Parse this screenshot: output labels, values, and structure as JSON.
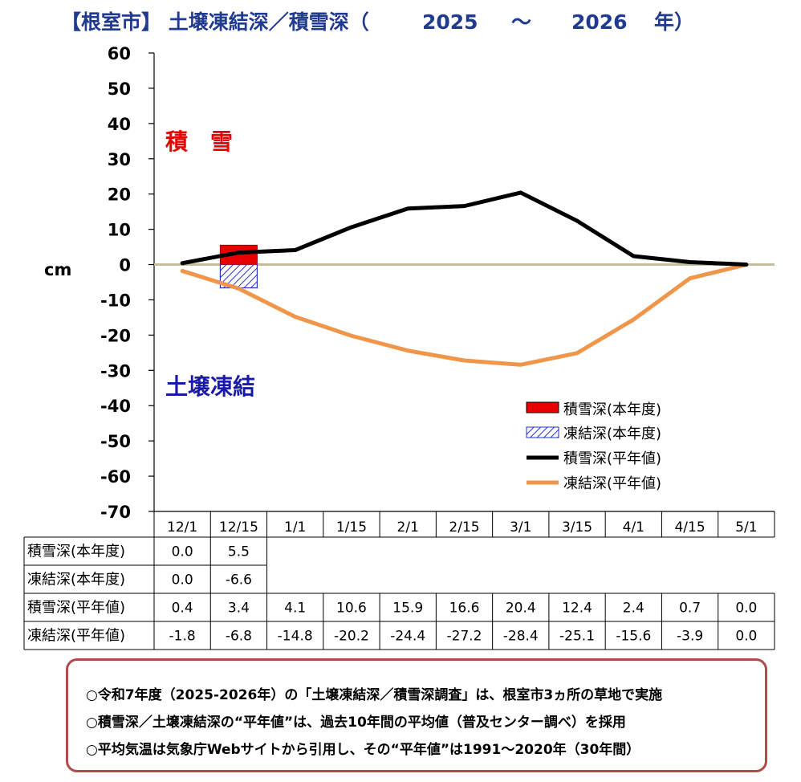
{
  "chart_data": {
    "type": "bar+line",
    "title": "【根室市】 土壌凍結深／積雪深（　2025　～　2026　年）",
    "title_parts": {
      "prefix": "【根室市】 土壌凍結深／積雪深（",
      "year_start": "2025",
      "tilde": "～",
      "year_end": "2026",
      "suffix": "年）"
    },
    "ylabel": "cm",
    "ylim": [
      -70,
      60
    ],
    "yticks": [
      "60",
      "50",
      "40",
      "30",
      "20",
      "10",
      "0",
      "-10",
      "-20",
      "-30",
      "-40",
      "-50",
      "-60",
      "-70"
    ],
    "ytick_values": [
      60,
      50,
      40,
      30,
      20,
      10,
      0,
      -10,
      -20,
      -30,
      -40,
      -50,
      -60,
      -70
    ],
    "categories": [
      "12/1",
      "12/15",
      "1/1",
      "1/15",
      "2/1",
      "2/15",
      "3/1",
      "3/15",
      "4/1",
      "4/15",
      "5/1"
    ],
    "annotations": {
      "snow": "積　雪",
      "frost": "土壌凍結"
    },
    "colors": {
      "snow_bar": "#e60000",
      "frost_bar": "#2233cc",
      "snow_line": "#000000",
      "frost_line": "#f0964a",
      "zero_line": "#c4bf9a",
      "title": "#1f3a8f",
      "snow_label": "#e60000",
      "frost_label": "#1a1aa8",
      "note_border": "#b04b4b"
    },
    "series": [
      {
        "name": "積雪深(本年度)",
        "kind": "bar",
        "display": [
          "0.0",
          "5.5"
        ],
        "values": [
          0.0,
          5.5,
          null,
          null,
          null,
          null,
          null,
          null,
          null,
          null,
          null
        ]
      },
      {
        "name": "凍結深(本年度)",
        "kind": "bar-hatched",
        "display": [
          "0.0",
          "-6.6"
        ],
        "values": [
          0.0,
          -6.6,
          null,
          null,
          null,
          null,
          null,
          null,
          null,
          null,
          null
        ]
      },
      {
        "name": "積雪深(平年値)",
        "kind": "line",
        "display": [
          "0.4",
          "3.4",
          "4.1",
          "10.6",
          "15.9",
          "16.6",
          "20.4",
          "12.4",
          "2.4",
          "0.7",
          "0.0"
        ],
        "values": [
          0.4,
          3.4,
          4.1,
          10.6,
          15.9,
          16.6,
          20.4,
          12.4,
          2.4,
          0.7,
          0.0
        ]
      },
      {
        "name": "凍結深(平年値)",
        "kind": "line",
        "display": [
          "-1.8",
          "-6.8",
          "-14.8",
          "-20.2",
          "-24.4",
          "-27.2",
          "-28.4",
          "-25.1",
          "-15.6",
          "-3.9",
          "0.0"
        ],
        "values": [
          -1.8,
          -6.8,
          -14.8,
          -20.2,
          -24.4,
          -27.2,
          -28.4,
          -25.1,
          -15.6,
          -3.9,
          0.0
        ]
      }
    ],
    "legend": [
      "積雪深(本年度)",
      "凍結深(本年度)",
      "積雪深(平年値)",
      "凍結深(平年値)"
    ]
  },
  "notes": [
    "○令和7年度（2025-2026年）の「土壌凍結深／積雪深調査」は、根室市3ヵ所の草地で実施",
    "○積雪深／土壌凍結深の“平年値”は、過去10年間の平均値（普及センター調べ）を採用",
    "○平均気温は気象庁Webサイトから引用し、その“平年値”は1991～2020年（30年間）"
  ]
}
